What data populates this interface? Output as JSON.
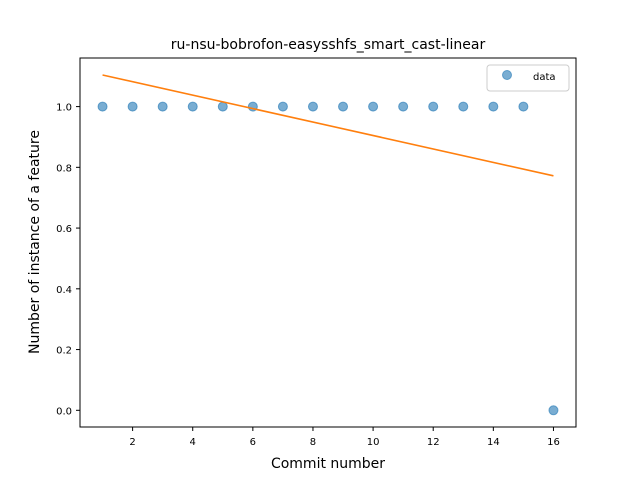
{
  "chart_data": {
    "type": "scatter",
    "title": "ru-nsu-bobrofon-easysshfs_smart_cast-linear",
    "xlabel": "Commit number",
    "ylabel": "Number of instance of a feature",
    "xlim": [
      0.25,
      16.75
    ],
    "ylim": [
      -0.055,
      1.16
    ],
    "xticks": [
      2,
      4,
      6,
      8,
      10,
      12,
      14,
      16
    ],
    "yticks": [
      0.0,
      0.2,
      0.4,
      0.6,
      0.8,
      1.0
    ],
    "ytick_labels": [
      "0.0",
      "0.2",
      "0.4",
      "0.6",
      "0.8",
      "1.0"
    ],
    "legend_position": "top-right",
    "grid": false,
    "series": [
      {
        "name": "data",
        "kind": "scatter",
        "color": "#1f77b4",
        "x": [
          1,
          2,
          3,
          4,
          5,
          6,
          7,
          8,
          9,
          10,
          11,
          12,
          13,
          14,
          15,
          16
        ],
        "y": [
          1,
          1,
          1,
          1,
          1,
          1,
          1,
          1,
          1,
          1,
          1,
          1,
          1,
          1,
          1,
          0
        ]
      },
      {
        "kind": "line",
        "color": "#ff7f0e",
        "x": [
          1,
          16
        ],
        "y": [
          1.104,
          0.772
        ]
      }
    ]
  }
}
